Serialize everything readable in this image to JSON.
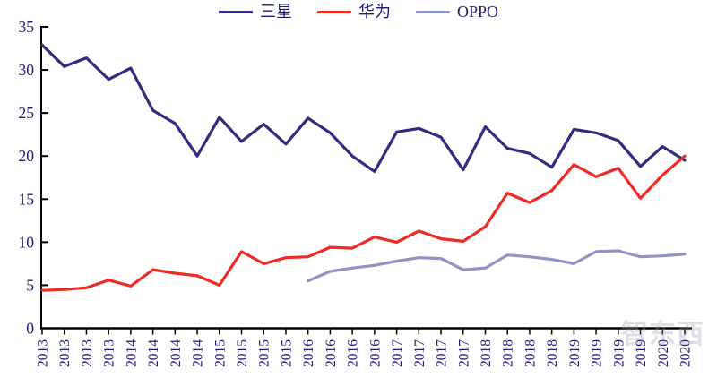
{
  "chart_data": {
    "type": "line",
    "title": "",
    "categories": [
      "2013",
      "2013",
      "2013",
      "2013",
      "2014",
      "2014",
      "2014",
      "2014",
      "2015",
      "2015",
      "2015",
      "2015",
      "2016",
      "2016",
      "2016",
      "2016",
      "2017",
      "2017",
      "2017",
      "2017",
      "2018",
      "2018",
      "2018",
      "2018",
      "2019",
      "2019",
      "2019",
      "2019",
      "2020",
      "2020"
    ],
    "ylim": [
      0,
      35
    ],
    "y_ticks": [
      0,
      5,
      10,
      15,
      20,
      25,
      30,
      35
    ],
    "grid": false,
    "legend_position": "top",
    "series": [
      {
        "key": "samsung",
        "name": "三星",
        "color": "#302c80",
        "values": [
          32.9,
          30.4,
          31.4,
          28.9,
          30.2,
          25.3,
          23.8,
          20.0,
          24.5,
          21.7,
          23.7,
          21.4,
          24.4,
          22.7,
          20.0,
          18.2,
          22.8,
          23.2,
          22.2,
          18.4,
          23.4,
          20.9,
          20.3,
          18.7,
          23.1,
          22.7,
          21.8,
          18.8,
          21.1,
          19.5
        ]
      },
      {
        "key": "huawei",
        "name": "华为",
        "color": "#ee2b23",
        "values": [
          4.4,
          4.5,
          4.7,
          5.6,
          4.9,
          6.8,
          6.4,
          6.1,
          5.0,
          8.9,
          7.5,
          8.2,
          8.3,
          9.4,
          9.3,
          10.6,
          10.0,
          11.3,
          10.4,
          10.1,
          11.8,
          15.7,
          14.6,
          16.0,
          19.0,
          17.6,
          18.6,
          15.1,
          17.8,
          20.0
        ]
      },
      {
        "key": "oppo",
        "name": "OPPO",
        "color": "#9193c7",
        "values": [
          null,
          null,
          null,
          null,
          null,
          null,
          null,
          null,
          null,
          null,
          null,
          null,
          5.5,
          6.6,
          7.0,
          7.3,
          7.8,
          8.2,
          8.1,
          6.8,
          7.0,
          8.5,
          8.3,
          8.0,
          7.5,
          8.9,
          9.0,
          8.3,
          8.4,
          8.6
        ]
      }
    ]
  },
  "watermark": {
    "text": "智东西"
  },
  "colors": {
    "axis": "#000000",
    "tick_label": "#1b1b7a",
    "legend_text": "#1b1b7a"
  }
}
